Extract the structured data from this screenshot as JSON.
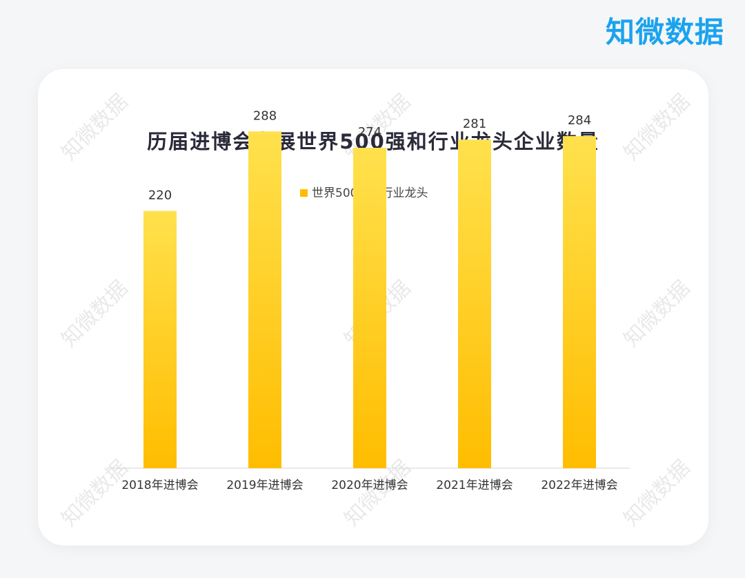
{
  "brand": {
    "logo_text": "知微数据",
    "color": "#1aa3ee"
  },
  "watermark_text": "知微数据",
  "chart_data": {
    "type": "bar",
    "title": "历届进博会参展世界500强和行业龙头企业数量",
    "categories": [
      "2018年进博会",
      "2019年进博会",
      "2020年进博会",
      "2021年进博会",
      "2022年进博会"
    ],
    "series": [
      {
        "name": "世界500强和行业龙头",
        "values": [
          220,
          288,
          274,
          281,
          284
        ],
        "color_top": "#ffe14d",
        "color_bottom": "#ffbd00"
      }
    ],
    "ylim": [
      0,
      300
    ],
    "grid": false,
    "legend_position": "top-center",
    "data_labels": true
  }
}
